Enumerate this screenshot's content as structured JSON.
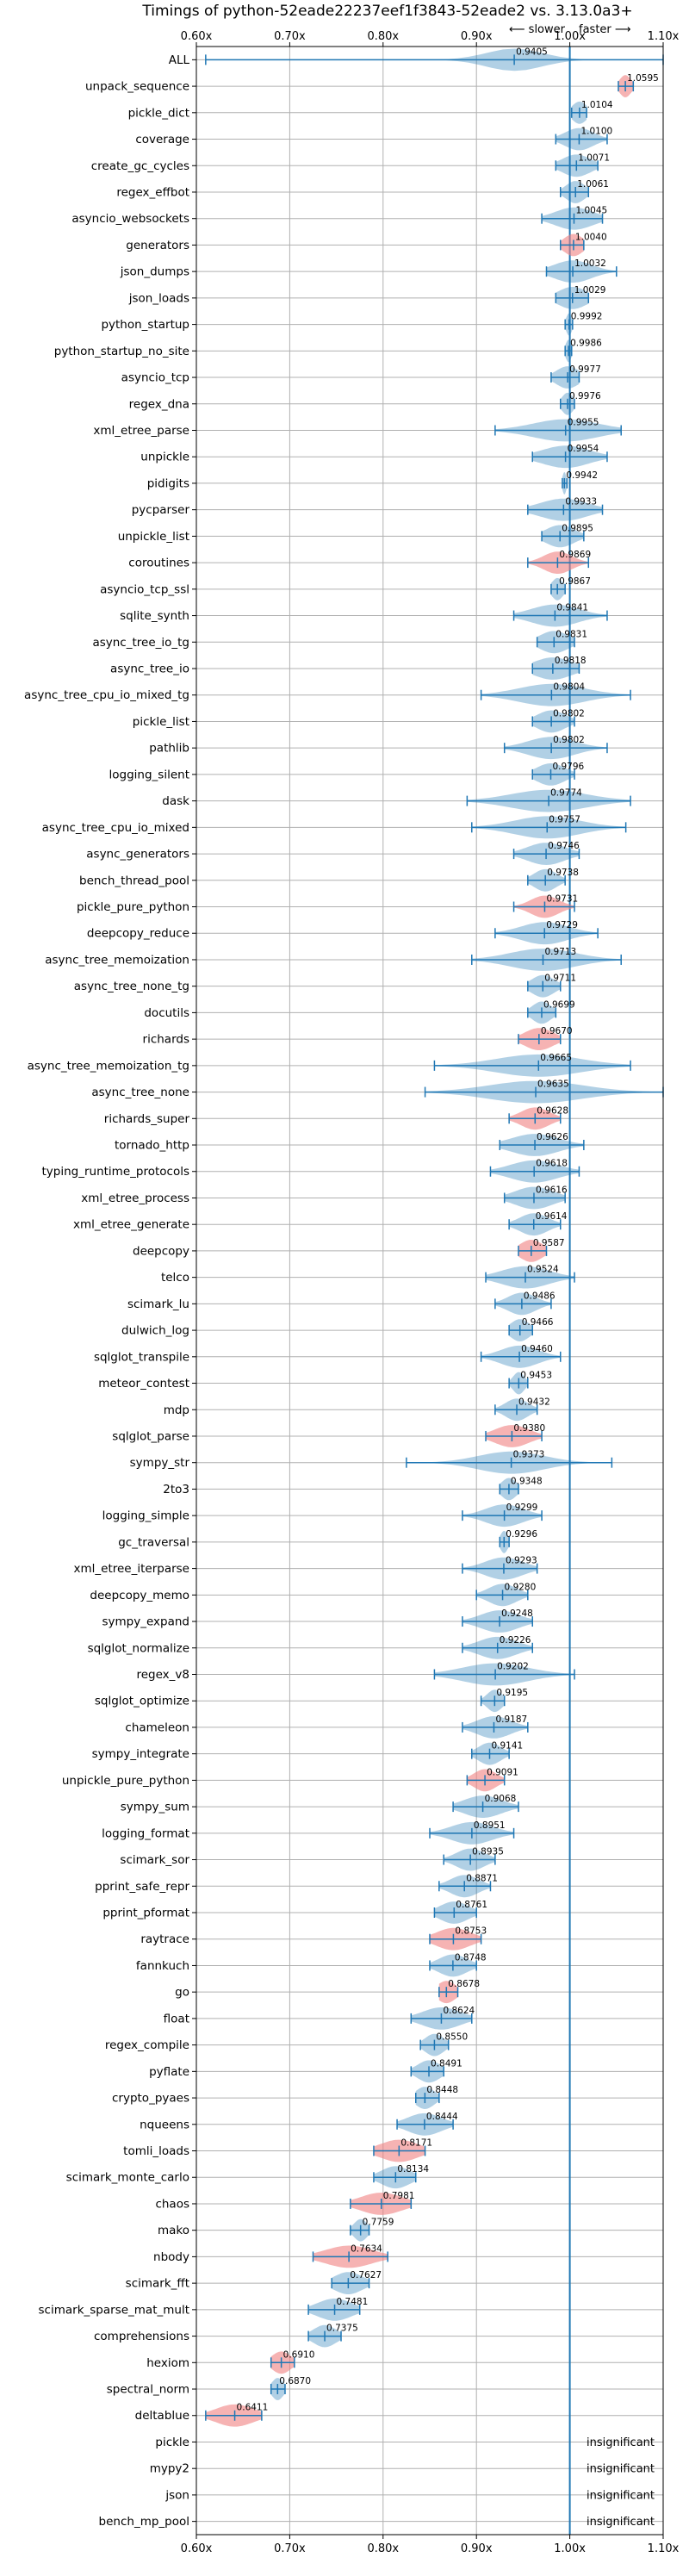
{
  "chart_data": {
    "type": "violin",
    "title": "Timings of python-52eade22237eef1f3843-52eade2 vs. 3.13.0a3+",
    "annotation_slower": "⟵ slower",
    "annotation_faster": "faster ⟶",
    "xlim": [
      0.6,
      1.1
    ],
    "xticks": [
      0.6,
      0.7,
      0.8,
      0.9,
      1.0,
      1.1
    ],
    "xtick_labels": [
      "0.60x",
      "0.70x",
      "0.80x",
      "0.90x",
      "1.00x",
      "1.10x"
    ],
    "reference_line": 1.0,
    "grid": true,
    "colors": {
      "normal": "#1f77b4",
      "highlight": "#f08080",
      "grid": "#b0b0b0"
    },
    "benchmarks": [
      {
        "name": "ALL",
        "value": 0.9405,
        "min": 0.61,
        "max": 1.1,
        "spread": 0.03
      },
      {
        "name": "unpack_sequence",
        "value": 1.0595,
        "min": 1.052,
        "max": 1.068,
        "spread": 0.006,
        "highlight": true
      },
      {
        "name": "pickle_dict",
        "value": 1.0104,
        "min": 1.002,
        "max": 1.018,
        "spread": 0.008
      },
      {
        "name": "coverage",
        "value": 1.01,
        "min": 0.985,
        "max": 1.04,
        "spread": 0.015
      },
      {
        "name": "create_gc_cycles",
        "value": 1.0071,
        "min": 0.985,
        "max": 1.03,
        "spread": 0.015
      },
      {
        "name": "regex_effbot",
        "value": 1.0061,
        "min": 0.99,
        "max": 1.02,
        "spread": 0.01
      },
      {
        "name": "asyncio_websockets",
        "value": 1.0045,
        "min": 0.97,
        "max": 1.035,
        "spread": 0.02
      },
      {
        "name": "generators",
        "value": 1.004,
        "min": 0.99,
        "max": 1.015,
        "spread": 0.01,
        "highlight": true
      },
      {
        "name": "json_dumps",
        "value": 1.0032,
        "min": 0.975,
        "max": 1.05,
        "spread": 0.02
      },
      {
        "name": "json_loads",
        "value": 1.0029,
        "min": 0.985,
        "max": 1.02,
        "spread": 0.015
      },
      {
        "name": "python_startup",
        "value": 0.9992,
        "min": 0.995,
        "max": 1.003,
        "spread": 0.003
      },
      {
        "name": "python_startup_no_site",
        "value": 0.9986,
        "min": 0.995,
        "max": 1.002,
        "spread": 0.003
      },
      {
        "name": "asyncio_tcp",
        "value": 0.9977,
        "min": 0.98,
        "max": 1.01,
        "spread": 0.012
      },
      {
        "name": "regex_dna",
        "value": 0.9976,
        "min": 0.99,
        "max": 1.005,
        "spread": 0.006
      },
      {
        "name": "xml_etree_parse",
        "value": 0.9955,
        "min": 0.92,
        "max": 1.055,
        "spread": 0.035
      },
      {
        "name": "unpickle",
        "value": 0.9954,
        "min": 0.96,
        "max": 1.04,
        "spread": 0.025
      },
      {
        "name": "pidigits",
        "value": 0.9942,
        "min": 0.992,
        "max": 0.997,
        "spread": 0.002
      },
      {
        "name": "pycparser",
        "value": 0.9933,
        "min": 0.955,
        "max": 1.035,
        "spread": 0.025
      },
      {
        "name": "unpickle_list",
        "value": 0.9895,
        "min": 0.97,
        "max": 1.015,
        "spread": 0.015
      },
      {
        "name": "coroutines",
        "value": 0.9869,
        "min": 0.955,
        "max": 1.02,
        "spread": 0.015,
        "highlight": true
      },
      {
        "name": "asyncio_tcp_ssl",
        "value": 0.9867,
        "min": 0.98,
        "max": 0.995,
        "spread": 0.006
      },
      {
        "name": "sqlite_synth",
        "value": 0.9841,
        "min": 0.94,
        "max": 1.04,
        "spread": 0.025
      },
      {
        "name": "async_tree_io_tg",
        "value": 0.9831,
        "min": 0.965,
        "max": 1.005,
        "spread": 0.015
      },
      {
        "name": "async_tree_io",
        "value": 0.9818,
        "min": 0.96,
        "max": 1.01,
        "spread": 0.02
      },
      {
        "name": "async_tree_cpu_io_mixed_tg",
        "value": 0.9804,
        "min": 0.905,
        "max": 1.065,
        "spread": 0.035
      },
      {
        "name": "pickle_list",
        "value": 0.9802,
        "min": 0.96,
        "max": 1.005,
        "spread": 0.015
      },
      {
        "name": "pathlib",
        "value": 0.9802,
        "min": 0.93,
        "max": 1.04,
        "spread": 0.025
      },
      {
        "name": "logging_silent",
        "value": 0.9796,
        "min": 0.96,
        "max": 1.005,
        "spread": 0.015
      },
      {
        "name": "dask",
        "value": 0.9774,
        "min": 0.89,
        "max": 1.065,
        "spread": 0.04
      },
      {
        "name": "async_tree_cpu_io_mixed",
        "value": 0.9757,
        "min": 0.895,
        "max": 1.06,
        "spread": 0.035
      },
      {
        "name": "async_generators",
        "value": 0.9746,
        "min": 0.94,
        "max": 1.01,
        "spread": 0.02
      },
      {
        "name": "bench_thread_pool",
        "value": 0.9738,
        "min": 0.955,
        "max": 0.995,
        "spread": 0.012
      },
      {
        "name": "pickle_pure_python",
        "value": 0.9731,
        "min": 0.94,
        "max": 1.005,
        "spread": 0.015,
        "highlight": true
      },
      {
        "name": "deepcopy_reduce",
        "value": 0.9729,
        "min": 0.92,
        "max": 1.03,
        "spread": 0.025
      },
      {
        "name": "async_tree_memoization",
        "value": 0.9713,
        "min": 0.895,
        "max": 1.055,
        "spread": 0.035
      },
      {
        "name": "async_tree_none_tg",
        "value": 0.9711,
        "min": 0.955,
        "max": 0.99,
        "spread": 0.012
      },
      {
        "name": "docutils",
        "value": 0.9699,
        "min": 0.955,
        "max": 0.985,
        "spread": 0.01
      },
      {
        "name": "richards",
        "value": 0.967,
        "min": 0.945,
        "max": 0.99,
        "spread": 0.015,
        "highlight": true
      },
      {
        "name": "async_tree_memoization_tg",
        "value": 0.9665,
        "min": 0.855,
        "max": 1.065,
        "spread": 0.045
      },
      {
        "name": "async_tree_none",
        "value": 0.9635,
        "min": 0.845,
        "max": 1.1,
        "spread": 0.05
      },
      {
        "name": "richards_super",
        "value": 0.9628,
        "min": 0.935,
        "max": 0.99,
        "spread": 0.015,
        "highlight": true
      },
      {
        "name": "tornado_http",
        "value": 0.9626,
        "min": 0.925,
        "max": 1.015,
        "spread": 0.025
      },
      {
        "name": "typing_runtime_protocols",
        "value": 0.9618,
        "min": 0.915,
        "max": 1.01,
        "spread": 0.025
      },
      {
        "name": "xml_etree_process",
        "value": 0.9616,
        "min": 0.93,
        "max": 0.995,
        "spread": 0.02
      },
      {
        "name": "xml_etree_generate",
        "value": 0.9614,
        "min": 0.935,
        "max": 0.99,
        "spread": 0.015
      },
      {
        "name": "deepcopy",
        "value": 0.9587,
        "min": 0.945,
        "max": 0.975,
        "spread": 0.012,
        "highlight": true
      },
      {
        "name": "telco",
        "value": 0.9524,
        "min": 0.91,
        "max": 1.005,
        "spread": 0.025
      },
      {
        "name": "scimark_lu",
        "value": 0.9486,
        "min": 0.92,
        "max": 0.98,
        "spread": 0.015
      },
      {
        "name": "dulwich_log",
        "value": 0.9466,
        "min": 0.935,
        "max": 0.96,
        "spread": 0.01
      },
      {
        "name": "sqlglot_transpile",
        "value": 0.946,
        "min": 0.905,
        "max": 0.99,
        "spread": 0.02
      },
      {
        "name": "meteor_contest",
        "value": 0.9453,
        "min": 0.935,
        "max": 0.955,
        "spread": 0.006
      },
      {
        "name": "mdp",
        "value": 0.9432,
        "min": 0.92,
        "max": 0.965,
        "spread": 0.012
      },
      {
        "name": "sqlglot_parse",
        "value": 0.938,
        "min": 0.91,
        "max": 0.97,
        "spread": 0.018,
        "highlight": true
      },
      {
        "name": "sympy_str",
        "value": 0.9373,
        "min": 0.825,
        "max": 1.045,
        "spread": 0.035
      },
      {
        "name": "2to3",
        "value": 0.9348,
        "min": 0.925,
        "max": 0.945,
        "spread": 0.008
      },
      {
        "name": "logging_simple",
        "value": 0.9299,
        "min": 0.885,
        "max": 0.97,
        "spread": 0.02
      },
      {
        "name": "gc_traversal",
        "value": 0.9296,
        "min": 0.925,
        "max": 0.935,
        "spread": 0.004
      },
      {
        "name": "xml_etree_iterparse",
        "value": 0.9293,
        "min": 0.885,
        "max": 0.965,
        "spread": 0.02
      },
      {
        "name": "deepcopy_memo",
        "value": 0.928,
        "min": 0.9,
        "max": 0.955,
        "spread": 0.015
      },
      {
        "name": "sympy_expand",
        "value": 0.9248,
        "min": 0.885,
        "max": 0.96,
        "spread": 0.02
      },
      {
        "name": "sqlglot_normalize",
        "value": 0.9226,
        "min": 0.885,
        "max": 0.96,
        "spread": 0.02
      },
      {
        "name": "regex_v8",
        "value": 0.9202,
        "min": 0.855,
        "max": 1.005,
        "spread": 0.035
      },
      {
        "name": "sqlglot_optimize",
        "value": 0.9195,
        "min": 0.905,
        "max": 0.93,
        "spread": 0.008
      },
      {
        "name": "chameleon",
        "value": 0.9187,
        "min": 0.885,
        "max": 0.955,
        "spread": 0.018
      },
      {
        "name": "sympy_integrate",
        "value": 0.9141,
        "min": 0.895,
        "max": 0.935,
        "spread": 0.012
      },
      {
        "name": "unpickle_pure_python",
        "value": 0.9091,
        "min": 0.89,
        "max": 0.93,
        "spread": 0.012,
        "highlight": true
      },
      {
        "name": "sympy_sum",
        "value": 0.9068,
        "min": 0.875,
        "max": 0.945,
        "spread": 0.02
      },
      {
        "name": "logging_format",
        "value": 0.8951,
        "min": 0.85,
        "max": 0.94,
        "spread": 0.022
      },
      {
        "name": "scimark_sor",
        "value": 0.8935,
        "min": 0.865,
        "max": 0.92,
        "spread": 0.015
      },
      {
        "name": "pprint_safe_repr",
        "value": 0.8871,
        "min": 0.86,
        "max": 0.915,
        "spread": 0.015
      },
      {
        "name": "pprint_pformat",
        "value": 0.8761,
        "min": 0.855,
        "max": 0.9,
        "spread": 0.015
      },
      {
        "name": "raytrace",
        "value": 0.8753,
        "min": 0.85,
        "max": 0.905,
        "spread": 0.018,
        "highlight": true
      },
      {
        "name": "fannkuch",
        "value": 0.8748,
        "min": 0.85,
        "max": 0.9,
        "spread": 0.015
      },
      {
        "name": "go",
        "value": 0.8678,
        "min": 0.86,
        "max": 0.88,
        "spread": 0.01,
        "highlight": true
      },
      {
        "name": "float",
        "value": 0.8624,
        "min": 0.83,
        "max": 0.895,
        "spread": 0.02
      },
      {
        "name": "regex_compile",
        "value": 0.855,
        "min": 0.84,
        "max": 0.87,
        "spread": 0.01
      },
      {
        "name": "pyflate",
        "value": 0.8491,
        "min": 0.83,
        "max": 0.865,
        "spread": 0.012
      },
      {
        "name": "crypto_pyaes",
        "value": 0.8448,
        "min": 0.835,
        "max": 0.86,
        "spread": 0.01
      },
      {
        "name": "nqueens",
        "value": 0.8444,
        "min": 0.815,
        "max": 0.875,
        "spread": 0.018
      },
      {
        "name": "tomli_loads",
        "value": 0.8171,
        "min": 0.79,
        "max": 0.845,
        "spread": 0.02,
        "highlight": true
      },
      {
        "name": "scimark_monte_carlo",
        "value": 0.8134,
        "min": 0.79,
        "max": 0.835,
        "spread": 0.015
      },
      {
        "name": "chaos",
        "value": 0.7981,
        "min": 0.765,
        "max": 0.83,
        "spread": 0.022,
        "highlight": true
      },
      {
        "name": "mako",
        "value": 0.7759,
        "min": 0.765,
        "max": 0.785,
        "spread": 0.007
      },
      {
        "name": "nbody",
        "value": 0.7634,
        "min": 0.725,
        "max": 0.805,
        "spread": 0.025,
        "highlight": true
      },
      {
        "name": "scimark_fft",
        "value": 0.7627,
        "min": 0.745,
        "max": 0.785,
        "spread": 0.015
      },
      {
        "name": "scimark_sparse_mat_mult",
        "value": 0.7481,
        "min": 0.72,
        "max": 0.775,
        "spread": 0.018
      },
      {
        "name": "comprehensions",
        "value": 0.7375,
        "min": 0.72,
        "max": 0.755,
        "spread": 0.012
      },
      {
        "name": "hexiom",
        "value": 0.691,
        "min": 0.68,
        "max": 0.705,
        "spread": 0.01,
        "highlight": true
      },
      {
        "name": "spectral_norm",
        "value": 0.687,
        "min": 0.68,
        "max": 0.695,
        "spread": 0.006
      },
      {
        "name": "deltablue",
        "value": 0.6411,
        "min": 0.61,
        "max": 0.67,
        "spread": 0.02,
        "highlight": true
      },
      {
        "name": "pickle",
        "insignificant": true
      },
      {
        "name": "mypy2",
        "insignificant": true
      },
      {
        "name": "json",
        "insignificant": true
      },
      {
        "name": "bench_mp_pool",
        "insignificant": true
      }
    ],
    "insignificant_label": "insignificant"
  }
}
